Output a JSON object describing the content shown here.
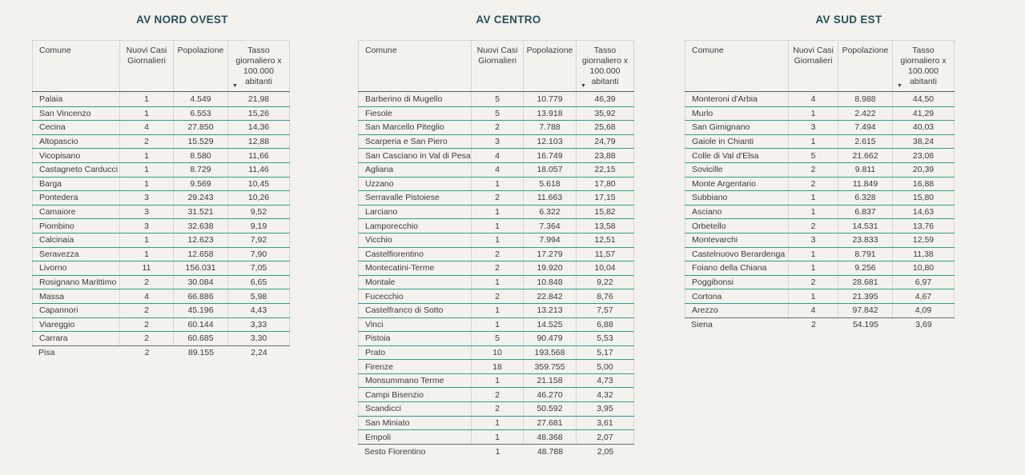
{
  "report": {
    "background": "#f4f2ed",
    "colors": {
      "title_text": "#24525e",
      "row_separator_teal": "#2e9e85",
      "grid_lines_gray": "#d8d6d0",
      "header_underline": "#5a5a5a",
      "body_text": "#3b3b3b"
    }
  },
  "icons": {
    "sort_descending": "▼"
  },
  "chart_data": [
    {
      "type": "table",
      "title": "AV NORD OVEST",
      "columns": [
        "Comune",
        "Nuovi Casi Giornalieri",
        "Popolazione",
        "Tasso giornaliero x 100.000 abitanti"
      ],
      "sorted_by": "Tasso giornaliero x 100.000 abitanti",
      "sort_direction": "descending",
      "rows": [
        [
          "Palaia",
          "1",
          "4.549",
          "21,98"
        ],
        [
          "San Vincenzo",
          "1",
          "6.553",
          "15,26"
        ],
        [
          "Cecina",
          "4",
          "27.850",
          "14,36"
        ],
        [
          "Altopascio",
          "2",
          "15.529",
          "12,88"
        ],
        [
          "Vicopisano",
          "1",
          "8.580",
          "11,66"
        ],
        [
          "Castagneto Carducci",
          "1",
          "8.729",
          "11,46"
        ],
        [
          "Barga",
          "1",
          "9.569",
          "10,45"
        ],
        [
          "Pontedera",
          "3",
          "29.243",
          "10,26"
        ],
        [
          "Camaiore",
          "3",
          "31.521",
          "9,52"
        ],
        [
          "Piombino",
          "3",
          "32.638",
          "9,19"
        ],
        [
          "Calcinaia",
          "1",
          "12.623",
          "7,92"
        ],
        [
          "Seravezza",
          "1",
          "12.658",
          "7,90"
        ],
        [
          "Livorno",
          "11",
          "156.031",
          "7,05"
        ],
        [
          "Rosignano Marittimo",
          "2",
          "30.084",
          "6,65"
        ],
        [
          "Massa",
          "4",
          "66.886",
          "5,98"
        ],
        [
          "Capannori",
          "2",
          "45.196",
          "4,43"
        ],
        [
          "Viareggio",
          "2",
          "60.144",
          "3,33"
        ],
        [
          "Carrara",
          "2",
          "60.685",
          "3,30"
        ],
        [
          "Pisa",
          "2",
          "89.155",
          "2,24"
        ]
      ]
    },
    {
      "type": "table",
      "title": "AV CENTRO",
      "columns": [
        "Comune",
        "Nuovi Casi Giornalieri",
        "Popolazione",
        "Tasso giornaliero x 100.000 abitanti"
      ],
      "sorted_by": "Tasso giornaliero x 100.000 abitanti",
      "sort_direction": "descending",
      "rows": [
        [
          "Barberino di Mugello",
          "5",
          "10.779",
          "46,39"
        ],
        [
          "Fiesole",
          "5",
          "13.918",
          "35,92"
        ],
        [
          "San Marcello Piteglio",
          "2",
          "7.788",
          "25,68"
        ],
        [
          "Scarperia e San Piero",
          "3",
          "12.103",
          "24,79"
        ],
        [
          "San Casciano in Val di Pesa",
          "4",
          "16.749",
          "23,88"
        ],
        [
          "Agliana",
          "4",
          "18.057",
          "22,15"
        ],
        [
          "Uzzano",
          "1",
          "5.618",
          "17,80"
        ],
        [
          "Serravalle Pistoiese",
          "2",
          "11.663",
          "17,15"
        ],
        [
          "Larciano",
          "1",
          "6.322",
          "15,82"
        ],
        [
          "Lamporecchio",
          "1",
          "7.364",
          "13,58"
        ],
        [
          "Vicchio",
          "1",
          "7.994",
          "12,51"
        ],
        [
          "Castelfiorentino",
          "2",
          "17.279",
          "11,57"
        ],
        [
          "Montecatini-Terme",
          "2",
          "19.920",
          "10,04"
        ],
        [
          "Montale",
          "1",
          "10.848",
          "9,22"
        ],
        [
          "Fucecchio",
          "2",
          "22.842",
          "8,76"
        ],
        [
          "Castelfranco di Sotto",
          "1",
          "13.213",
          "7,57"
        ],
        [
          "Vinci",
          "1",
          "14.525",
          "6,88"
        ],
        [
          "Pistoia",
          "5",
          "90.479",
          "5,53"
        ],
        [
          "Prato",
          "10",
          "193.568",
          "5,17"
        ],
        [
          "Firenze",
          "18",
          "359.755",
          "5,00"
        ],
        [
          "Monsummano Terme",
          "1",
          "21.158",
          "4,73"
        ],
        [
          "Campi Bisenzio",
          "2",
          "46.270",
          "4,32"
        ],
        [
          "Scandicci",
          "2",
          "50.592",
          "3,95"
        ],
        [
          "San Miniato",
          "1",
          "27.681",
          "3,61"
        ],
        [
          "Empoli",
          "1",
          "48.368",
          "2,07"
        ],
        [
          "Sesto Fiorentino",
          "1",
          "48.788",
          "2,05"
        ]
      ]
    },
    {
      "type": "table",
      "title": "AV SUD EST",
      "columns": [
        "Comune",
        "Nuovi Casi Giornalieri",
        "Popolazione",
        "Tasso giornaliero x 100.000 abitanti"
      ],
      "sorted_by": "Tasso giornaliero x 100.000 abitanti",
      "sort_direction": "descending",
      "rows": [
        [
          "Monteroni d'Arbia",
          "4",
          "8.988",
          "44,50"
        ],
        [
          "Murlo",
          "1",
          "2.422",
          "41,29"
        ],
        [
          "San Gimignano",
          "3",
          "7.494",
          "40,03"
        ],
        [
          "Gaiole in Chianti",
          "1",
          "2.615",
          "38,24"
        ],
        [
          "Colle di Val d'Elsa",
          "5",
          "21.662",
          "23,08"
        ],
        [
          "Sovicille",
          "2",
          "9.811",
          "20,39"
        ],
        [
          "Monte Argentario",
          "2",
          "11.849",
          "16,88"
        ],
        [
          "Subbiano",
          "1",
          "6.328",
          "15,80"
        ],
        [
          "Asciano",
          "1",
          "6.837",
          "14,63"
        ],
        [
          "Orbetello",
          "2",
          "14.531",
          "13,76"
        ],
        [
          "Montevarchi",
          "3",
          "23.833",
          "12,59"
        ],
        [
          "Castelnuovo Berardenga",
          "1",
          "8.791",
          "11,38"
        ],
        [
          "Foiano della Chiana",
          "1",
          "9.256",
          "10,80"
        ],
        [
          "Poggibonsi",
          "2",
          "28.681",
          "6,97"
        ],
        [
          "Cortona",
          "1",
          "21.395",
          "4,67"
        ],
        [
          "Arezzo",
          "4",
          "97.842",
          "4,09"
        ],
        [
          "Siena",
          "2",
          "54.195",
          "3,69"
        ]
      ]
    }
  ]
}
